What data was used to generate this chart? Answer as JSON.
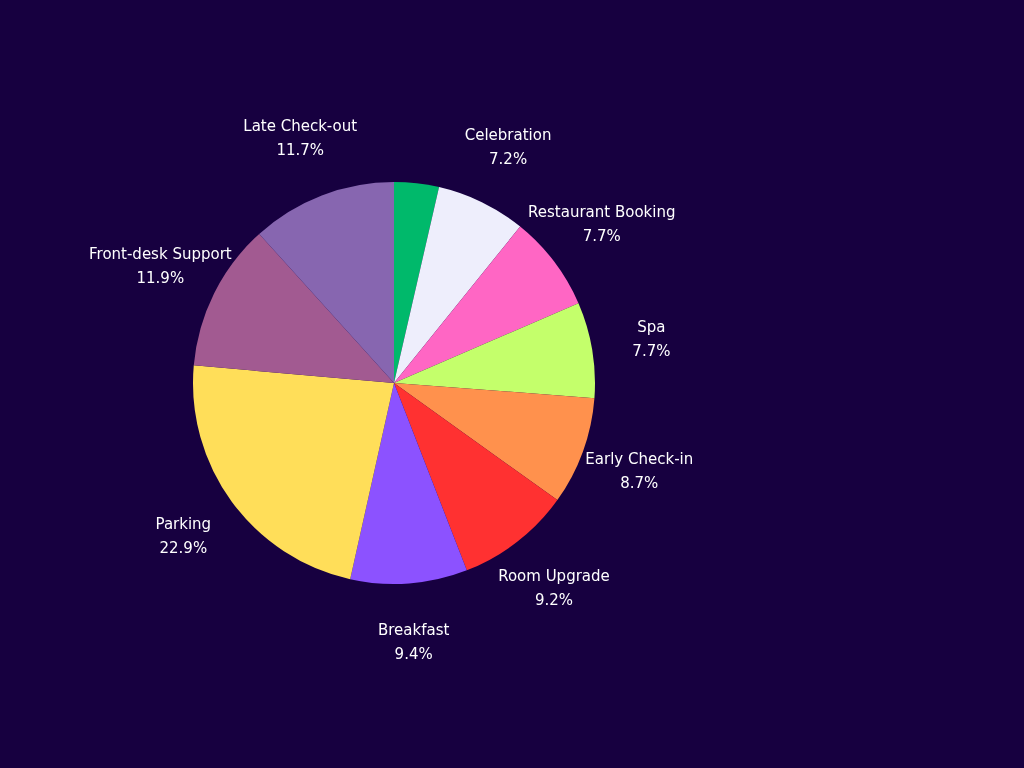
{
  "chart_data": {
    "type": "pie",
    "categories": [
      null,
      "Celebration",
      "Restaurant Booking",
      "Spa",
      "Early Check-in",
      "Room Upgrade",
      "Breakfast",
      "Parking",
      "Front-desk Support",
      "Late Check-out"
    ],
    "values": [
      3.6,
      7.2,
      7.7,
      7.7,
      8.7,
      9.2,
      9.4,
      22.9,
      11.9,
      11.7
    ],
    "value_labels": [
      null,
      "7.2%",
      "7.7%",
      "7.7%",
      "8.7%",
      "9.2%",
      "9.4%",
      "22.9%",
      "11.9%",
      "11.7%"
    ],
    "colors": [
      "#00b96b",
      "#eeeefc",
      "#ff66c4",
      "#c4ff6b",
      "#ff914d",
      "#ff3131",
      "#8c52ff",
      "#ffde59",
      "#a25a91",
      "#8766b0"
    ],
    "legend": false
  }
}
